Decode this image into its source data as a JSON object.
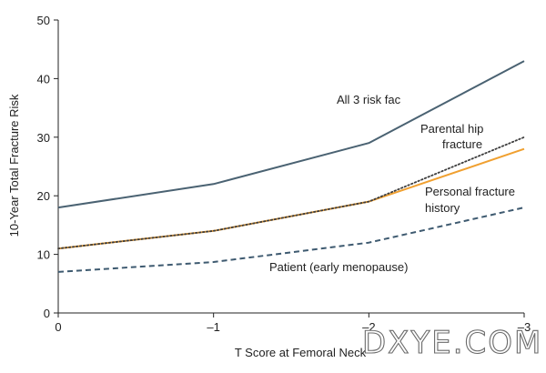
{
  "chart_data": {
    "type": "line",
    "title": "",
    "xlabel": "T Score at Femoral Neck",
    "ylabel": "10-Year Total Fracture Risk",
    "x": [
      0,
      -1,
      -2,
      -3
    ],
    "xticks": [
      "0",
      "–1",
      "–2",
      "–3"
    ],
    "yticks": [
      "0",
      "10",
      "20",
      "30",
      "40",
      "50"
    ],
    "xlim": [
      0,
      -3
    ],
    "ylim": [
      0,
      50
    ],
    "grid": false,
    "series": [
      {
        "name": "All 3 risk factors",
        "values": [
          18,
          22,
          29,
          43
        ],
        "color": "#4a6272",
        "style": "solid"
      },
      {
        "name": "Parental hip fracture",
        "values": [
          11,
          14,
          19,
          30
        ],
        "color": "#3d3d3d",
        "style": "dotted"
      },
      {
        "name": "Personal fracture history",
        "values": [
          11,
          14,
          19,
          28
        ],
        "color": "#f0a030",
        "style": "solid"
      },
      {
        "name": "Patient (early menopause)",
        "values": [
          7,
          8.7,
          12,
          18
        ],
        "color": "#3e5a70",
        "style": "dashed"
      }
    ],
    "labels": {
      "all3": "All 3 risk fac",
      "parental_line1": "Parental hip",
      "parental_line2": "fracture",
      "personal_line1": "Personal fracture",
      "personal_line2": "history",
      "patient": "Patient (early menopause)"
    }
  },
  "watermark": "DXYE.COM"
}
